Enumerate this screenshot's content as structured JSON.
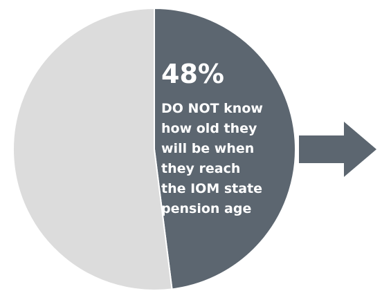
{
  "chart_data": {
    "type": "pie",
    "slices": [
      {
        "value": 48,
        "color": "#5c6670",
        "label": "48%"
      },
      {
        "value": 52,
        "color": "#dcdcdc"
      }
    ],
    "annotation": {
      "percent": "48%",
      "lines": [
        "DO NOT know",
        "how old they",
        "will be when",
        "they reach",
        "the IOM state",
        "pension age"
      ]
    },
    "arrow": {
      "color": "#5c6670"
    }
  }
}
